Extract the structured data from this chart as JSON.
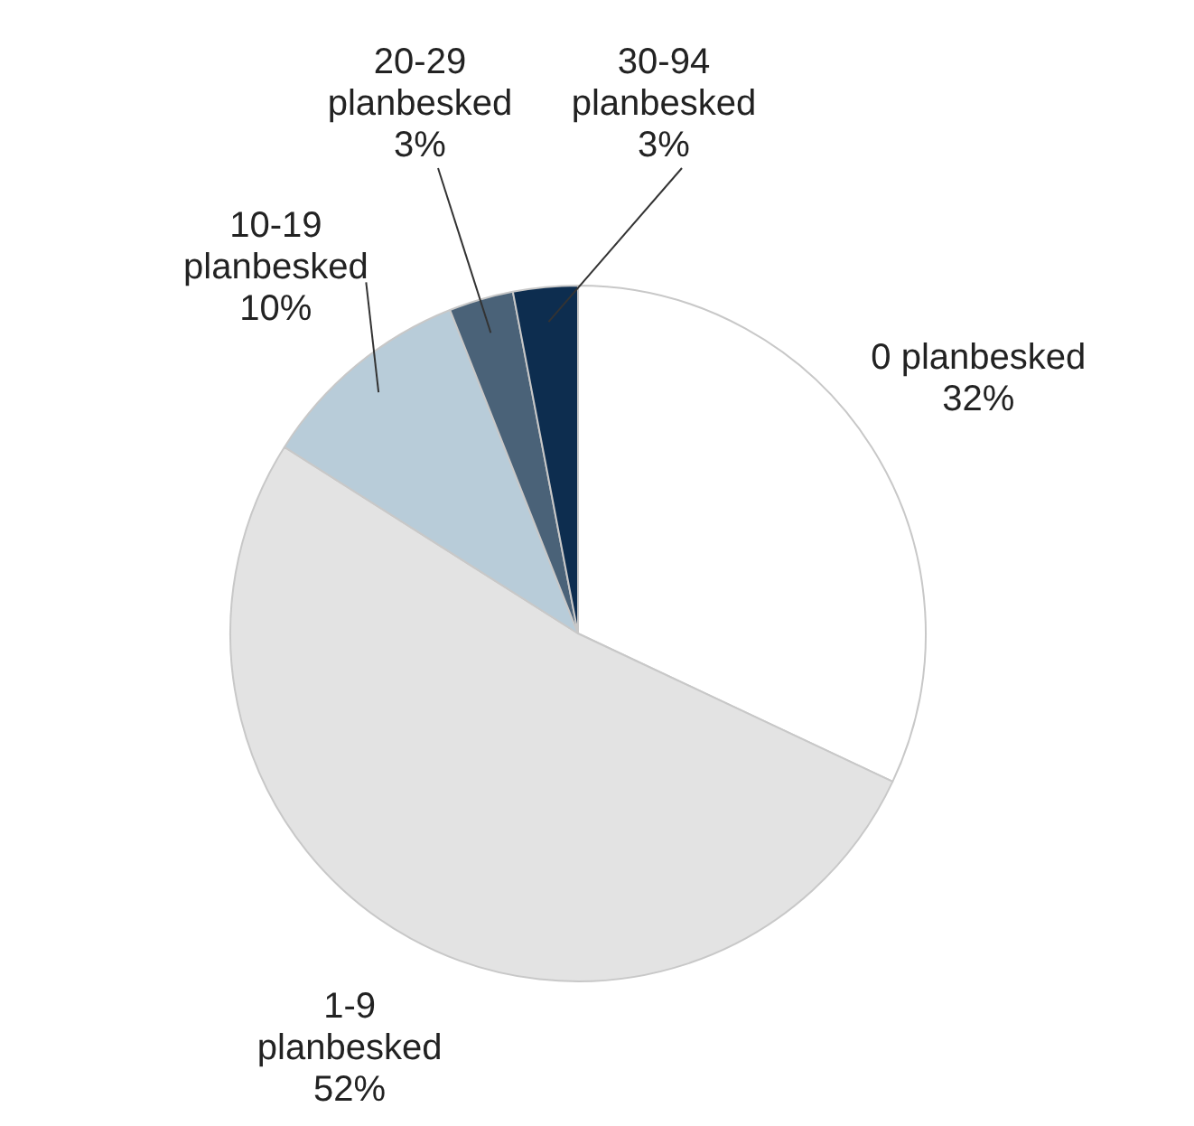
{
  "chart_data": {
    "type": "pie",
    "categories": [
      "0 planbesked",
      "1-9 planbesked",
      "10-19 planbesked",
      "20-29 planbesked",
      "30-94 planbesked"
    ],
    "values": [
      32,
      52,
      10,
      3,
      3
    ],
    "value_labels": [
      "32%",
      "52%",
      "10%",
      "3%",
      "3%"
    ],
    "colors": [
      "#ffffff",
      "#e3e3e3",
      "#b8ccd9",
      "#4a6278",
      "#0d2d4f"
    ],
    "legend": false
  }
}
